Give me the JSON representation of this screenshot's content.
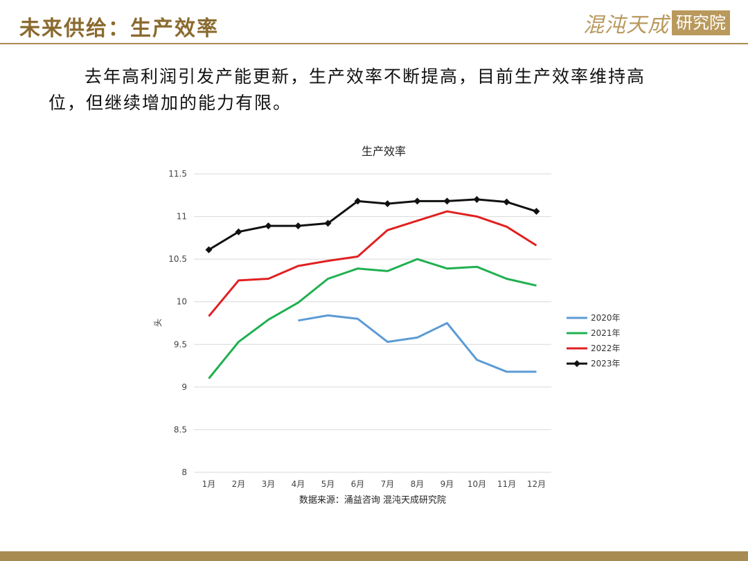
{
  "slide": {
    "title": "未来供给：生产效率",
    "logo_text": "混沌天成",
    "logo_box_text": "研究院",
    "body": "去年高利润引发产能更新，生产效率不断提高，目前生产效率维持高位，但继续增加的能力有限。"
  },
  "colors": {
    "title": "#8a6a2e",
    "rule": "#a88b50",
    "s2020": "#5b9bd5",
    "s2021": "#1fb050",
    "s2022": "#e02020",
    "s2023": "#111111"
  },
  "chart_data": {
    "type": "line",
    "title": "生产效率",
    "ylabel": "头",
    "xlabel": "",
    "source": "数据来源：涌益咨询 混沌天成研究院",
    "categories": [
      "1月",
      "2月",
      "3月",
      "4月",
      "5月",
      "6月",
      "7月",
      "8月",
      "9月",
      "10月",
      "11月",
      "12月"
    ],
    "ylim": [
      8,
      11.5
    ],
    "yticks": [
      "11.5",
      "11",
      "10.5",
      "10",
      "9.5",
      "9",
      "8.5",
      "8"
    ],
    "grid": true,
    "legend_position": "right",
    "series": [
      {
        "name": "2020年",
        "color": "#5b9bd5",
        "marker": false,
        "values": [
          null,
          null,
          null,
          9.78,
          9.84,
          9.8,
          9.53,
          9.58,
          9.75,
          9.32,
          9.18,
          9.18
        ]
      },
      {
        "name": "2021年",
        "color": "#1fb050",
        "marker": false,
        "values": [
          9.1,
          9.53,
          9.79,
          9.99,
          10.27,
          10.39,
          10.36,
          10.5,
          10.39,
          10.41,
          10.27,
          10.19
        ]
      },
      {
        "name": "2022年",
        "color": "#e02020",
        "marker": false,
        "values": [
          9.83,
          10.25,
          10.27,
          10.42,
          10.48,
          10.53,
          10.84,
          10.95,
          11.06,
          11.0,
          10.88,
          10.66
        ]
      },
      {
        "name": "2023年",
        "color": "#111111",
        "marker": true,
        "values": [
          10.61,
          10.82,
          10.89,
          10.89,
          10.92,
          11.18,
          11.15,
          11.18,
          11.18,
          11.2,
          11.17,
          11.06
        ]
      }
    ]
  }
}
